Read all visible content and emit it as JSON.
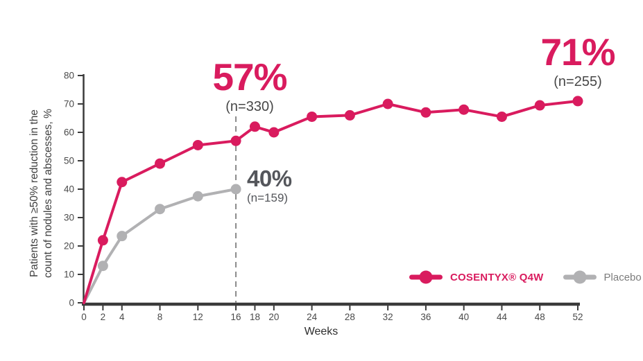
{
  "axis": {
    "x_label": "Weeks",
    "y_label_line1": "Patients with ≥50% reduction in the",
    "y_label_line2": "count of nodules and abscesses, %"
  },
  "annotations": {
    "cosentyx_week16": {
      "value": "57%",
      "n": "(n=330)"
    },
    "cosentyx_week52": {
      "value": "71%",
      "n": "(n=255)"
    },
    "placebo_week16": {
      "value": "40%",
      "n": "(n=159)"
    }
  },
  "legend": {
    "items": [
      {
        "label": "COSENTYX® Q4W",
        "color": "#D91B5E"
      },
      {
        "label": "Placebo",
        "color": "#B1B1B3"
      }
    ]
  },
  "chart_data": {
    "type": "line",
    "title": "",
    "xlabel": "Weeks",
    "ylabel": "Patients with ≥50% reduction in the count of nodules and abscesses, %",
    "xlim": [
      0,
      52
    ],
    "ylim": [
      0,
      80
    ],
    "x_ticks": [
      0,
      2,
      4,
      8,
      12,
      16,
      18,
      20,
      24,
      28,
      32,
      36,
      40,
      44,
      48,
      52
    ],
    "y_ticks": [
      0,
      10,
      20,
      30,
      40,
      50,
      60,
      70,
      80
    ],
    "grid": false,
    "legend_position": "bottom-right-inside",
    "dashed_line_week": 16,
    "series": [
      {
        "name": "COSENTYX® Q4W",
        "color": "#D91B5E",
        "x": [
          0,
          2,
          4,
          8,
          12,
          16,
          18,
          20,
          24,
          28,
          32,
          36,
          40,
          44,
          48,
          52
        ],
        "values": [
          0,
          22,
          42.5,
          49,
          55.5,
          57,
          62,
          60,
          65.5,
          66,
          70,
          67,
          68,
          65.5,
          69.5,
          71
        ]
      },
      {
        "name": "Placebo",
        "color": "#B1B1B3",
        "x": [
          0,
          2,
          4,
          8,
          12,
          16
        ],
        "values": [
          0,
          13,
          23.5,
          33,
          37.5,
          40
        ]
      }
    ],
    "annotations": [
      {
        "series": "COSENTYX® Q4W",
        "week": 16,
        "text": "57%",
        "n": 330
      },
      {
        "series": "COSENTYX® Q4W",
        "week": 52,
        "text": "71%",
        "n": 255
      },
      {
        "series": "Placebo",
        "week": 16,
        "text": "40%",
        "n": 159
      }
    ],
    "colors": {
      "cosentyx": "#D91B5E",
      "placebo": "#B1B1B3",
      "axis": "#3A3A3A",
      "tick_label": "#4A4A4A",
      "dashed": "#8A8A8A",
      "annotation_gray": "#54565B"
    }
  }
}
